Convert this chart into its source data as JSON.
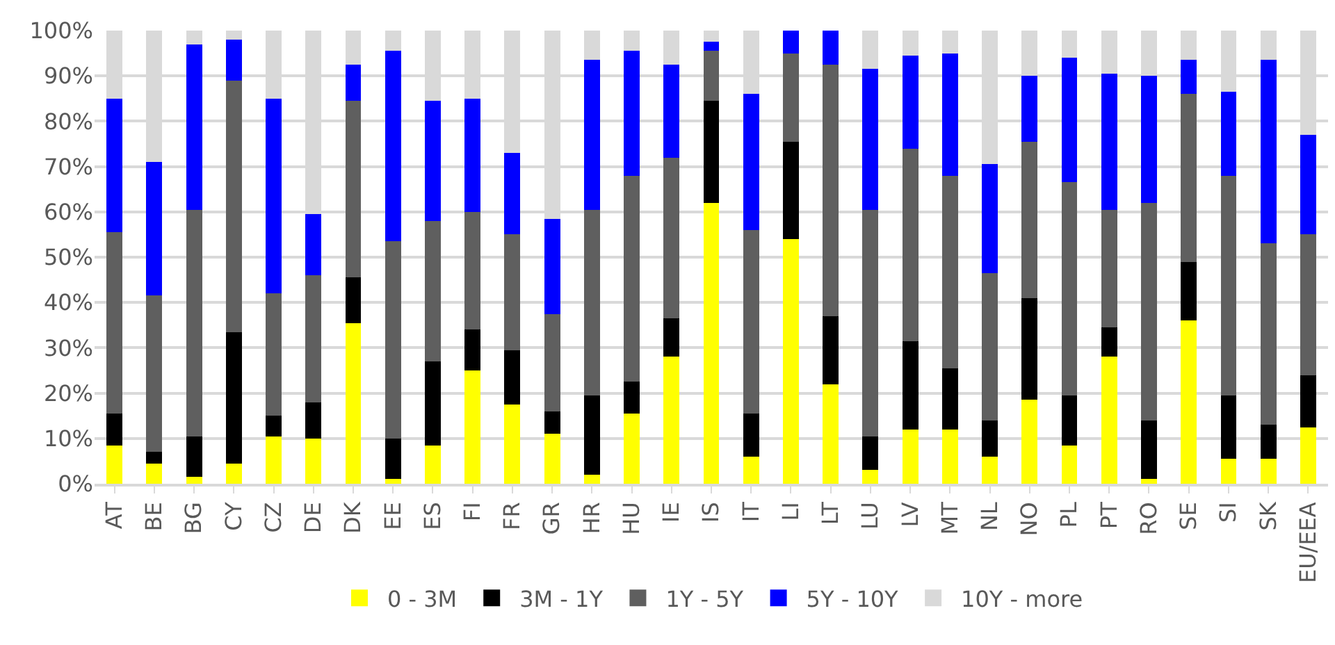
{
  "chart_data": {
    "type": "bar",
    "stacked": true,
    "categories": [
      "AT",
      "BE",
      "BG",
      "CY",
      "CZ",
      "DE",
      "DK",
      "EE",
      "ES",
      "FI",
      "FR",
      "GR",
      "HR",
      "HU",
      "IE",
      "IS",
      "IT",
      "LI",
      "LT",
      "LU",
      "LV",
      "MT",
      "NL",
      "NO",
      "PL",
      "PT",
      "RO",
      "SE",
      "SI",
      "SK",
      "EU/EEA"
    ],
    "series": [
      {
        "name": "0 - 3M",
        "color": "#ffff00",
        "values": [
          8.5,
          4.5,
          1.5,
          4.5,
          10.5,
          10,
          35.5,
          1,
          8.5,
          25,
          17.5,
          11,
          2,
          15.5,
          28,
          62,
          6,
          54,
          22,
          3,
          12,
          12,
          6,
          18.5,
          8.5,
          28,
          1,
          36,
          5.5,
          5.5,
          12.5
        ]
      },
      {
        "name": "3M - 1Y",
        "color": "#000000",
        "values": [
          7,
          2.5,
          9,
          29,
          4.5,
          8,
          10,
          9,
          18.5,
          9,
          12,
          5,
          17.5,
          7,
          8.5,
          22.5,
          9.5,
          21.5,
          15,
          7.5,
          19.5,
          13.5,
          8,
          22.5,
          11,
          6.5,
          13,
          13,
          14,
          7.5,
          11.5
        ]
      },
      {
        "name": "1Y - 5Y",
        "color": "#5f5f5f",
        "values": [
          40,
          34.5,
          50,
          55.5,
          27,
          28,
          39,
          43.5,
          31,
          26,
          25.5,
          21.5,
          41,
          45.5,
          35.5,
          11,
          40.5,
          19.5,
          55.5,
          50,
          42.5,
          42.5,
          32.5,
          34.5,
          47,
          26,
          48,
          37,
          48.5,
          40,
          31
        ]
      },
      {
        "name": "5Y - 10Y",
        "color": "#0000ff",
        "values": [
          29.5,
          29.5,
          36.5,
          9,
          43,
          13.5,
          8,
          42,
          26.5,
          25,
          18,
          21,
          33,
          27.5,
          20.5,
          2,
          30,
          5,
          7.5,
          31,
          20.5,
          27,
          24,
          14.5,
          27.5,
          30,
          28,
          7.5,
          18.5,
          40.5,
          22
        ]
      },
      {
        "name": "10Y - more",
        "color": "#d9d9d9",
        "values": [
          15,
          29,
          3,
          2,
          15,
          40.5,
          7.5,
          4.5,
          15.5,
          15,
          27,
          41.5,
          6.5,
          4.5,
          7.5,
          2.5,
          14,
          0,
          0,
          8.5,
          5.5,
          5,
          29.5,
          10,
          6,
          9.5,
          10,
          6.5,
          13.5,
          6.5,
          23
        ]
      }
    ],
    "ylim": [
      0,
      100
    ],
    "yticks": [
      {
        "value": 0,
        "label": "0%"
      },
      {
        "value": 10,
        "label": "10%"
      },
      {
        "value": 20,
        "label": "20%"
      },
      {
        "value": 30,
        "label": "30%"
      },
      {
        "value": 40,
        "label": "40%"
      },
      {
        "value": 50,
        "label": "50%"
      },
      {
        "value": 60,
        "label": "60%"
      },
      {
        "value": 70,
        "label": "70%"
      },
      {
        "value": 80,
        "label": "80%"
      },
      {
        "value": 90,
        "label": "90%"
      },
      {
        "value": 100,
        "label": "100%"
      }
    ],
    "grid": "y",
    "legend": "bottom"
  }
}
